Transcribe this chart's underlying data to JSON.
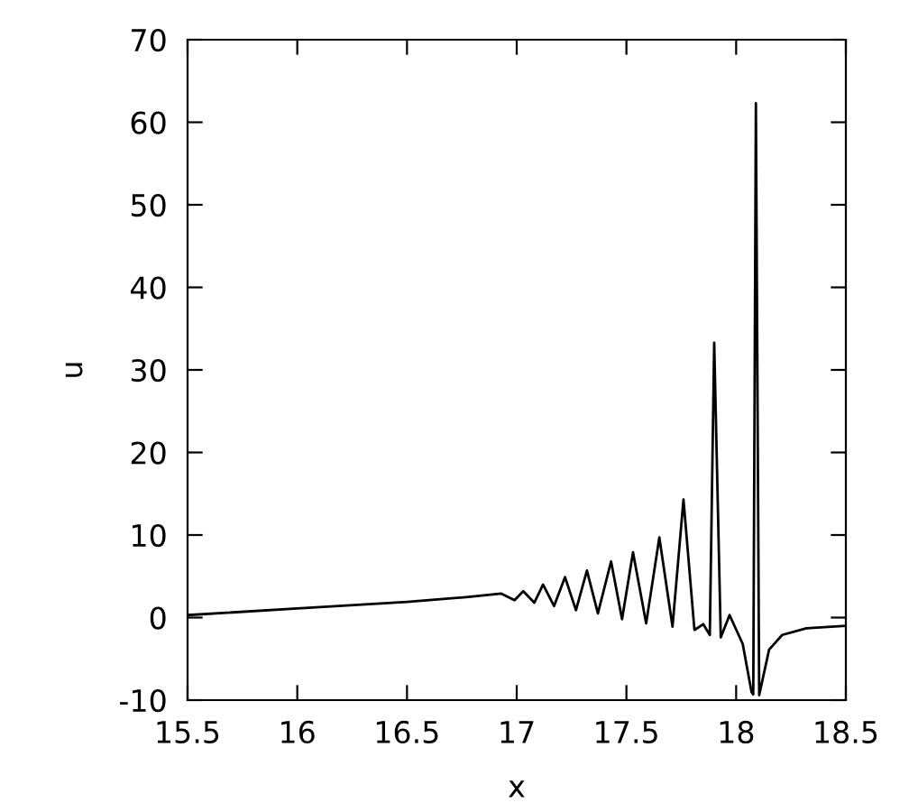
{
  "chart_data": {
    "type": "line",
    "xlabel": "x",
    "ylabel": "u",
    "xlim": [
      15.5,
      18.5
    ],
    "ylim": [
      -10,
      70
    ],
    "xticks": [
      15.5,
      16,
      16.5,
      17,
      17.5,
      18,
      18.5
    ],
    "yticks": [
      -10,
      0,
      10,
      20,
      30,
      40,
      50,
      60,
      70
    ],
    "grid": false,
    "legend": false,
    "marker": "none",
    "line_style": "solid",
    "series": [
      {
        "color": "#000000",
        "x": [
          15.5,
          16.0,
          16.5,
          16.78,
          16.93,
          16.99,
          17.03,
          17.08,
          17.12,
          17.17,
          17.22,
          17.27,
          17.32,
          17.37,
          17.43,
          17.48,
          17.53,
          17.59,
          17.65,
          17.71,
          17.76,
          17.81,
          17.85,
          17.88,
          17.9,
          17.93,
          17.97,
          18.03,
          18.07,
          18.078,
          18.09,
          18.105,
          18.15,
          18.21,
          18.32,
          18.5
        ],
        "values": [
          0.3,
          1.1,
          1.9,
          2.5,
          2.9,
          2.1,
          3.2,
          1.8,
          4.0,
          1.4,
          4.9,
          0.9,
          5.7,
          0.5,
          6.8,
          -0.2,
          7.9,
          -0.7,
          9.7,
          -1.1,
          14.3,
          -1.5,
          -0.8,
          -2.1,
          33.3,
          -2.4,
          0.3,
          -3.2,
          -9.0,
          -9.3,
          62.3,
          -9.4,
          -3.9,
          -2.1,
          -1.3,
          -1.0
        ]
      }
    ]
  }
}
